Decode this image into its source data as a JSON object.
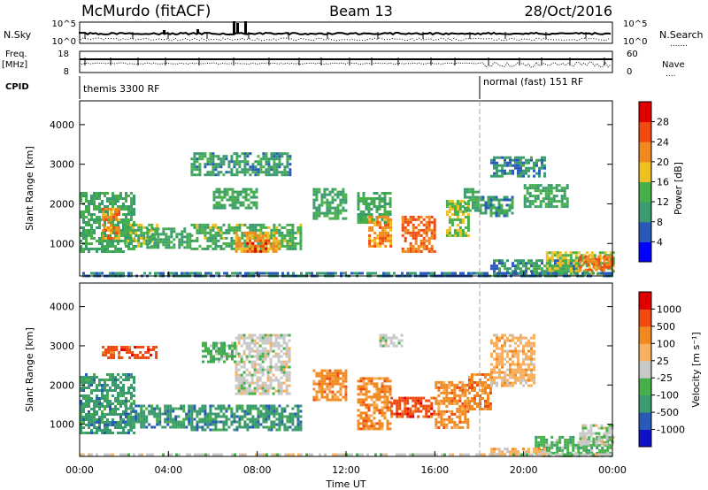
{
  "header": {
    "station": "McMurdo (fitACF)",
    "beam": "Beam 13",
    "date": "28/Oct/2016"
  },
  "top_panels": {
    "nsky_label": "N.Sky",
    "nsearch_label": "N.Search",
    "nsearch_dots": ".......",
    "count_ticks": [
      "10^5",
      "10^0"
    ],
    "freq_label": "Freq.",
    "freq_unit": "[MHz]",
    "freq_ticks": [
      "18",
      "8"
    ],
    "nave_ticks": [
      "60",
      "0"
    ],
    "nave_label": "Nave",
    "nave_dots": "....",
    "cpid_label": "CPID",
    "cpid_modes": [
      {
        "name": "themis 3300 RF",
        "start_hour": 0,
        "end_hour": 18
      },
      {
        "name": "normal (fast) 151 RF",
        "start_hour": 18,
        "end_hour": 24
      }
    ]
  },
  "colors": {
    "power": [
      "#0000ff",
      "#2a5ab8",
      "#3a9b6e",
      "#48b04a",
      "#f0c020",
      "#f08a20",
      "#f04a10",
      "#e00000"
    ],
    "velocity": [
      "#e00000",
      "#f04a10",
      "#f08a20",
      "#f8b060",
      "#c8c8c8",
      "#48b04a",
      "#3a9b6e",
      "#2a5ab8",
      "#1010c8"
    ]
  },
  "chart_data": [
    {
      "type": "heatmap",
      "name": "power",
      "xlabel": "",
      "ylabel": "Slant Range [km]",
      "xlim": [
        0,
        24
      ],
      "ylim": [
        180,
        4600
      ],
      "yticks": [
        "1000",
        "2000",
        "3000",
        "4000"
      ],
      "colorbar_label": "Power [dB]",
      "colorbar_ticks": [
        "4",
        "8",
        "12",
        "16",
        "20",
        "24",
        "28"
      ],
      "colorbar_range": [
        0,
        32
      ],
      "patches": [
        {
          "t0": 0.0,
          "t1": 2.5,
          "r0": 800,
          "r1": 2300,
          "level": 12
        },
        {
          "t0": 1.0,
          "t1": 1.8,
          "r0": 1100,
          "r1": 1900,
          "level": 22
        },
        {
          "t0": 2.0,
          "t1": 3.5,
          "r0": 900,
          "r1": 1500,
          "level": 14
        },
        {
          "t0": 3.0,
          "t1": 5.0,
          "r0": 900,
          "r1": 1400,
          "level": 12
        },
        {
          "t0": 5.0,
          "t1": 10.0,
          "r0": 850,
          "r1": 1500,
          "level": 13
        },
        {
          "t0": 7.0,
          "t1": 9.0,
          "r0": 800,
          "r1": 1300,
          "level": 20
        },
        {
          "t0": 7.5,
          "t1": 8.5,
          "r0": 800,
          "r1": 1100,
          "level": 26
        },
        {
          "t0": 5.0,
          "t1": 9.5,
          "r0": 2700,
          "r1": 3300,
          "level": 10
        },
        {
          "t0": 6.0,
          "t1": 8.0,
          "r0": 1900,
          "r1": 2400,
          "level": 12
        },
        {
          "t0": 10.5,
          "t1": 12.0,
          "r0": 1600,
          "r1": 2400,
          "level": 12
        },
        {
          "t0": 12.5,
          "t1": 14.0,
          "r0": 1500,
          "r1": 2300,
          "level": 12
        },
        {
          "t0": 13.0,
          "t1": 14.0,
          "r0": 900,
          "r1": 1700,
          "level": 22
        },
        {
          "t0": 14.5,
          "t1": 16.0,
          "r0": 800,
          "r1": 1700,
          "level": 24
        },
        {
          "t0": 16.5,
          "t1": 17.5,
          "r0": 1200,
          "r1": 2100,
          "level": 16
        },
        {
          "t0": 17.3,
          "t1": 18.0,
          "r0": 1800,
          "r1": 2400,
          "level": 12
        },
        {
          "t0": 18.0,
          "t1": 19.5,
          "r0": 1700,
          "r1": 2200,
          "level": 10
        },
        {
          "t0": 18.5,
          "t1": 21.0,
          "r0": 2700,
          "r1": 3200,
          "level": 9
        },
        {
          "t0": 20.0,
          "t1": 22.0,
          "r0": 1900,
          "r1": 2500,
          "level": 12
        },
        {
          "t0": 18.5,
          "t1": 22.5,
          "r0": 180,
          "r1": 600,
          "level": 10
        },
        {
          "t0": 21.0,
          "t1": 24.0,
          "r0": 180,
          "r1": 800,
          "level": 16
        },
        {
          "t0": 22.5,
          "t1": 24.0,
          "r0": 300,
          "r1": 700,
          "level": 24
        },
        {
          "t0": 0.0,
          "t1": 24.0,
          "r0": 180,
          "r1": 280,
          "level": 8
        }
      ]
    },
    {
      "type": "heatmap",
      "name": "velocity",
      "xlabel": "Time UT",
      "ylabel": "Slant Range [km]",
      "xlim": [
        0,
        24
      ],
      "ylim": [
        180,
        4600
      ],
      "xticks": [
        "00:00",
        "04:00",
        "08:00",
        "12:00",
        "16:00",
        "20:00",
        "00:00"
      ],
      "yticks": [
        "1000",
        "2000",
        "3000",
        "4000"
      ],
      "colorbar_label": "Velocity [m s⁻¹]",
      "colorbar_ticks": [
        "1000",
        "500",
        "100",
        "25",
        "-25",
        "-100",
        "-500",
        "-1000"
      ],
      "patches": [
        {
          "t0": 0.0,
          "t1": 2.5,
          "r0": 800,
          "r1": 2300,
          "level": 6
        },
        {
          "t0": 2.0,
          "t1": 5.0,
          "r0": 900,
          "r1": 1500,
          "level": 6
        },
        {
          "t0": 5.0,
          "t1": 10.0,
          "r0": 850,
          "r1": 1500,
          "level": 6
        },
        {
          "t0": 7.0,
          "t1": 9.5,
          "r0": 1800,
          "r1": 3300,
          "level": 4
        },
        {
          "t0": 5.5,
          "t1": 7.0,
          "r0": 2600,
          "r1": 3100,
          "level": 5
        },
        {
          "t0": 1.0,
          "t1": 3.5,
          "r0": 2700,
          "r1": 3000,
          "level": 1
        },
        {
          "t0": 10.5,
          "t1": 12.0,
          "r0": 1600,
          "r1": 2400,
          "level": 2
        },
        {
          "t0": 12.5,
          "t1": 14.0,
          "r0": 900,
          "r1": 2200,
          "level": 2
        },
        {
          "t0": 14.0,
          "t1": 16.0,
          "r0": 1200,
          "r1": 1700,
          "level": 1
        },
        {
          "t0": 16.0,
          "t1": 17.5,
          "r0": 900,
          "r1": 2100,
          "level": 2
        },
        {
          "t0": 17.5,
          "t1": 18.5,
          "r0": 1400,
          "r1": 2300,
          "level": 2
        },
        {
          "t0": 18.5,
          "t1": 20.5,
          "r0": 2000,
          "r1": 3300,
          "level": 3
        },
        {
          "t0": 13.5,
          "t1": 14.5,
          "r0": 3000,
          "r1": 3300,
          "level": 4
        },
        {
          "t0": 20.5,
          "t1": 24.0,
          "r0": 180,
          "r1": 700,
          "level": 5
        },
        {
          "t0": 22.5,
          "t1": 24.0,
          "r0": 500,
          "r1": 1000,
          "level": 4
        },
        {
          "t0": 18.5,
          "t1": 21.0,
          "r0": 180,
          "r1": 400,
          "level": 3
        },
        {
          "t0": 0.0,
          "t1": 24.0,
          "r0": 180,
          "r1": 260,
          "level": 4
        }
      ]
    }
  ]
}
